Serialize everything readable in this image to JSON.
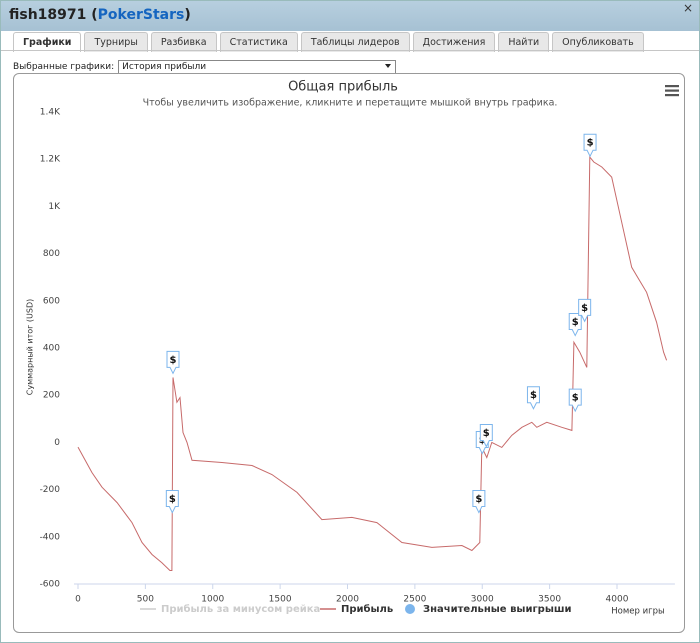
{
  "header": {
    "user": "fish18971 (",
    "site": "PokerStars",
    "suffix": ")",
    "close": "×"
  },
  "tabs": [
    "Графики",
    "Турниры",
    "Разбивка",
    "Статистика",
    "Таблицы лидеров",
    "Достижения",
    "Найти",
    "Опубликовать"
  ],
  "selector": {
    "label": "Выбранные графики:",
    "value": "История прибыли"
  },
  "chart_data": {
    "type": "line",
    "title": "Общая прибыль",
    "subtitle": "Чтобы увеличить изображение, кликните и перетащите мышкой внутрь графика.",
    "y_label": "Суммарный итог (USD)",
    "x_label": "Номер игры",
    "xlim": [
      0,
      4400
    ],
    "ylim": [
      -600,
      1400
    ],
    "xticks": [
      0,
      500,
      1000,
      1500,
      2000,
      2500,
      3000,
      3500,
      4000
    ],
    "yticks": [
      -600,
      -400,
      -200,
      0,
      200,
      400,
      600,
      800,
      {
        "value": 1000,
        "label": "1K"
      },
      {
        "value": 1200,
        "label": "1.2K"
      },
      {
        "value": 1400,
        "label": "1.4K"
      }
    ],
    "grid": false,
    "series": [
      {
        "name": "Прибыль за минусом рейка",
        "color": "#cccccc",
        "visible": false
      },
      {
        "name": "Прибыль",
        "color": "#c76a6a",
        "x": [
          0,
          104,
          178,
          290,
          401,
          475,
          549,
          623,
          682,
          697,
          705,
          734,
          757,
          779,
          809,
          846,
          1068,
          1291,
          1439,
          1625,
          1810,
          2033,
          2218,
          2404,
          2626,
          2849,
          2923,
          2982,
          2997,
          3034,
          3071,
          3145,
          3219,
          3294,
          3368,
          3405,
          3479,
          3590,
          3665,
          3680,
          3724,
          3776,
          3798,
          3828,
          3887,
          3961,
          4035,
          4109,
          4220,
          4294,
          4346,
          4368
        ],
        "values": [
          -20,
          -128,
          -190,
          -255,
          -340,
          -424,
          -475,
          -510,
          -543,
          -543,
          275,
          170,
          190,
          42,
          0,
          -76,
          -85,
          -98,
          -136,
          -212,
          -327,
          -318,
          -340,
          -424,
          -445,
          -437,
          -458,
          -424,
          -21,
          -64,
          0,
          -21,
          30,
          64,
          85,
          64,
          85,
          64,
          51,
          424,
          382,
          318,
          1209,
          1188,
          1167,
          1124,
          933,
          742,
          636,
          509,
          382,
          348
        ]
      },
      {
        "name": "Значительные выигрыши",
        "color": "#7cb5ec",
        "marker_label": "$",
        "x": [
          700,
          705,
          2975,
          3000,
          3030,
          3380,
          3690,
          3690,
          3760,
          3800
        ],
        "values": [
          -310,
          280,
          -310,
          -60,
          -30,
          130,
          120,
          440,
          500,
          1200
        ]
      }
    ]
  }
}
